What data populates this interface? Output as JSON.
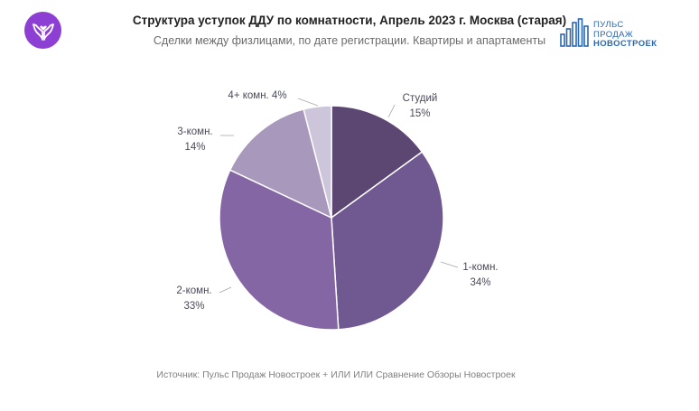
{
  "header": {
    "title": "Структура уступок ДДУ по комнатности, Апрель 2023 г. Москва (старая)",
    "subtitle": "Сделки между физлицами, по дате регистрации. Квартиры и апартаменты"
  },
  "brand": {
    "line1": "ПУЛЬС",
    "line2": "ПРОДАЖ",
    "line3": "НОВОСТРОЕК",
    "color": "#2b67b0"
  },
  "left_logo": {
    "icon": "hands-icon",
    "color": "#8e3fd3"
  },
  "chart_data": {
    "type": "pie",
    "title": "Структура уступок ДДУ по комнатности, Апрель 2023 г. Москва (старая)",
    "categories": [
      "Студий",
      "1-комн.",
      "2-комн.",
      "3-комн.",
      "4+ комн."
    ],
    "values": [
      15,
      34,
      33,
      14,
      4
    ],
    "labels": [
      "15%",
      "34%",
      "33%",
      "14%",
      "4%"
    ],
    "colors": [
      "#5c4672",
      "#705891",
      "#8466a5",
      "#a898bc",
      "#cdc6da"
    ],
    "start_angle": "12 o'clock",
    "direction": "clockwise"
  },
  "footer": {
    "source": "Источник: Пульс Продаж Новостроек + ИЛИ ИЛИ Сравнение Обзоры Новостроек"
  }
}
